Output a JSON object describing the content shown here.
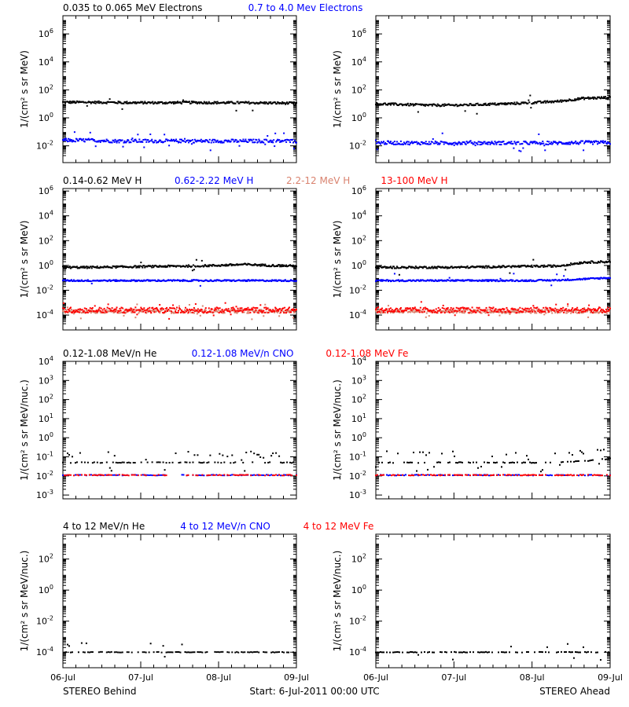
{
  "figure": {
    "bottom_left": "STEREO Behind",
    "bottom_center": "Start:  6-Jul-2011 00:00 UTC",
    "bottom_right": "STEREO Ahead",
    "x_ticks": [
      "06-Jul",
      "07-Jul",
      "08-Jul",
      "09-Jul"
    ],
    "colors": {
      "black": "#000000",
      "blue": "#0000ff",
      "salmon": "#d9826e",
      "red": "#ff0000",
      "axis": "#000000"
    }
  },
  "chart_data": [
    {
      "type": "scatter",
      "panel": "electrons-behind",
      "legend": [
        {
          "text": "0.035 to 0.065 MeV Electrons",
          "color": "#000000"
        },
        {
          "text": "0.7 to 4.0 Mev Electrons",
          "color": "#0000ff"
        }
      ],
      "ylabel": "1/(cm² s sr MeV)",
      "yscale": "log",
      "ylim_exp": [
        -3.2,
        7.3
      ],
      "ytick_exp": [
        -2,
        0,
        2,
        4,
        6
      ],
      "xlim_days": [
        0,
        3
      ],
      "series": [
        {
          "color": "#000000",
          "y": [
            13,
            13,
            12.5,
            12,
            12,
            12.5,
            12,
            12,
            11.5,
            11
          ],
          "scatter_exp": 0.08,
          "outliers": 0.01
        },
        {
          "color": "#0000ff",
          "y": [
            0.025,
            0.025,
            0.022,
            0.022,
            0.022,
            0.022,
            0.022,
            0.022,
            0.022,
            0.022
          ],
          "scatter_exp": 0.12,
          "outliers": 0.06
        }
      ]
    },
    {
      "type": "scatter",
      "panel": "electrons-ahead",
      "legend": [],
      "ylabel": "1/(cm² s sr MeV)",
      "yscale": "log",
      "ylim_exp": [
        -3.2,
        7.3
      ],
      "ytick_exp": [
        -2,
        0,
        2,
        4,
        6
      ],
      "xlim_days": [
        0,
        3
      ],
      "series": [
        {
          "color": "#000000",
          "y": [
            10,
            9,
            8,
            8,
            9,
            10,
            12,
            15,
            25,
            28
          ],
          "scatter_exp": 0.08,
          "outliers": 0.01
        },
        {
          "color": "#0000ff",
          "y": [
            0.017,
            0.016,
            0.016,
            0.016,
            0.016,
            0.016,
            0.016,
            0.016,
            0.017,
            0.017
          ],
          "scatter_exp": 0.12,
          "outliers": 0.05
        }
      ]
    },
    {
      "type": "scatter",
      "panel": "protons-behind",
      "legend": [
        {
          "text": "0.14-0.62 MeV H",
          "color": "#000000"
        },
        {
          "text": "0.62-2.22 MeV H",
          "color": "#0000ff"
        },
        {
          "text": "2.2-12 MeV H",
          "color": "#d9826e"
        },
        {
          "text": "13-100 MeV H",
          "color": "#ff0000"
        }
      ],
      "ylabel": "1/(cm² s sr MeV)",
      "yscale": "log",
      "ylim_exp": [
        -5.2,
        6.2
      ],
      "ytick_exp": [
        -4,
        -2,
        0,
        2,
        4,
        6
      ],
      "xlim_days": [
        0,
        3
      ],
      "series": [
        {
          "color": "#000000",
          "y": [
            0.7,
            0.7,
            0.75,
            0.8,
            0.85,
            0.9,
            1.0,
            1.2,
            1.0,
            0.9
          ],
          "scatter_exp": 0.08,
          "outliers": 0.01
        },
        {
          "color": "#0000ff",
          "y": [
            0.06,
            0.06,
            0.06,
            0.06,
            0.06,
            0.06,
            0.06,
            0.06,
            0.06,
            0.06
          ],
          "scatter_exp": 0.06,
          "outliers": 0.02
        },
        {
          "color": "#d9826e",
          "y": [
            0.0002,
            0.0002,
            0.0002,
            0.0002,
            0.0002,
            0.0002,
            0.0002,
            0.0002,
            0.0002,
            0.0002
          ],
          "scatter_exp": 0.15,
          "outliers": 0.05
        },
        {
          "color": "#ff0000",
          "y": [
            0.00025,
            0.00025,
            0.00025,
            0.00025,
            0.00025,
            0.00025,
            0.00025,
            0.00025,
            0.00025,
            0.00025
          ],
          "scatter_exp": 0.22,
          "outliers": 0.05
        }
      ]
    },
    {
      "type": "scatter",
      "panel": "protons-ahead",
      "legend": [],
      "ylabel": "1/(cm² s sr MeV)",
      "yscale": "log",
      "ylim_exp": [
        -5.2,
        6.2
      ],
      "ytick_exp": [
        -4,
        -2,
        0,
        2,
        4,
        6
      ],
      "xlim_days": [
        0,
        3
      ],
      "series": [
        {
          "color": "#000000",
          "y": [
            0.7,
            0.7,
            0.7,
            0.7,
            0.75,
            0.8,
            0.85,
            0.9,
            1.8,
            2.0
          ],
          "scatter_exp": 0.08,
          "outliers": 0.01
        },
        {
          "color": "#0000ff",
          "y": [
            0.06,
            0.06,
            0.06,
            0.06,
            0.06,
            0.06,
            0.06,
            0.065,
            0.08,
            0.1
          ],
          "scatter_exp": 0.06,
          "outliers": 0.02
        },
        {
          "color": "#d9826e",
          "y": [
            0.0002,
            0.0002,
            0.0002,
            0.0002,
            0.0002,
            0.0002,
            0.0002,
            0.0002,
            0.0002,
            0.0002
          ],
          "scatter_exp": 0.15,
          "outliers": 0.05
        },
        {
          "color": "#ff0000",
          "y": [
            0.00025,
            0.00025,
            0.00025,
            0.00025,
            0.00025,
            0.00025,
            0.00025,
            0.00025,
            0.00025,
            0.00025
          ],
          "scatter_exp": 0.22,
          "outliers": 0.05
        }
      ]
    },
    {
      "type": "scatter",
      "panel": "heavy-low-behind",
      "legend": [
        {
          "text": "0.12-1.08 MeV/n He",
          "color": "#000000"
        },
        {
          "text": "0.12-1.08 MeV/n CNO",
          "color": "#0000ff"
        },
        {
          "text": "0.12-1.08 MeV Fe",
          "color": "#ff0000"
        }
      ],
      "ylabel": "1/(cm² s sr MeV/nuc.)",
      "yscale": "log",
      "ylim_exp": [
        -3.2,
        4.0
      ],
      "ytick_exp": [
        -3,
        -2,
        -1,
        0,
        1,
        2,
        3,
        4
      ],
      "xlim_days": [
        0,
        3
      ],
      "series": [
        {
          "color": "#000000",
          "y": [
            0.05,
            0.05,
            0.05,
            0.05,
            0.05,
            0.05,
            0.05,
            0.05,
            0.05,
            0.05
          ],
          "scatter_exp": 0.0,
          "outliers": 0.15,
          "gaps": []
        },
        {
          "color": "#0000ff",
          "y": [
            0.011,
            0.011,
            0.011,
            0.011,
            0.011,
            0.011,
            0.011,
            0.011,
            0.011,
            0.011
          ],
          "scatter_exp": 0.0,
          "outliers": 0.0,
          "gaps": [
            [
              1.33,
              1.53
            ]
          ]
        },
        {
          "color": "#ff0000",
          "y": [
            0.011,
            0.011,
            0.011,
            0.011,
            0.011,
            0.011,
            0.011,
            0.011,
            0.011,
            0.011
          ],
          "scatter_exp": 0.0,
          "outliers": 0.0,
          "gaps": [
            [
              1.33,
              1.53
            ]
          ]
        }
      ]
    },
    {
      "type": "scatter",
      "panel": "heavy-low-ahead",
      "legend": [],
      "ylabel": "1/(cm² s sr MeV/nuc.)",
      "yscale": "log",
      "ylim_exp": [
        -3.2,
        4.0
      ],
      "ytick_exp": [
        -3,
        -2,
        -1,
        0,
        1,
        2,
        3,
        4
      ],
      "xlim_days": [
        0,
        3
      ],
      "series": [
        {
          "color": "#000000",
          "y": [
            0.05,
            0.05,
            0.05,
            0.05,
            0.05,
            0.05,
            0.05,
            0.05,
            0.06,
            0.08
          ],
          "scatter_exp": 0.0,
          "outliers": 0.15,
          "gaps": []
        },
        {
          "color": "#0000ff",
          "y": [
            0.011,
            0.011,
            0.011,
            0.011,
            0.011,
            0.011,
            0.011,
            0.011,
            0.011,
            0.011
          ],
          "scatter_exp": 0.0,
          "outliers": 0.0,
          "gaps": []
        },
        {
          "color": "#ff0000",
          "y": [
            0.011,
            0.011,
            0.011,
            0.011,
            0.011,
            0.011,
            0.011,
            0.011,
            0.011,
            0.011
          ],
          "scatter_exp": 0.0,
          "outliers": 0.0,
          "gaps": []
        }
      ]
    },
    {
      "type": "scatter",
      "panel": "heavy-high-behind",
      "legend": [
        {
          "text": "4 to 12 MeV/n He",
          "color": "#000000"
        },
        {
          "text": "4 to 12 MeV/n CNO",
          "color": "#0000ff"
        },
        {
          "text": "4 to 12 MeV Fe",
          "color": "#ff0000"
        }
      ],
      "ylabel": "1/(cm² s sr MeV/nuc.)",
      "yscale": "log",
      "ylim_exp": [
        -5.0,
        3.6
      ],
      "ytick_exp": [
        -4,
        -2,
        0,
        2
      ],
      "xlim_days": [
        0,
        3
      ],
      "series": [
        {
          "color": "#000000",
          "y": [
            0.0001,
            0.0001,
            0.0001,
            0.0001,
            0.0001,
            0.0001,
            0.0001,
            0.0001,
            0.0001,
            0.0001
          ],
          "scatter_exp": 0.0,
          "outliers": 0.04,
          "gaps": []
        }
      ]
    },
    {
      "type": "scatter",
      "panel": "heavy-high-ahead",
      "legend": [],
      "ylabel": "1/(cm² s sr MeV/nuc.)",
      "yscale": "log",
      "ylim_exp": [
        -5.0,
        3.6
      ],
      "ytick_exp": [
        -4,
        -2,
        0,
        2
      ],
      "xlim_days": [
        0,
        3
      ],
      "series": [
        {
          "color": "#000000",
          "y": [
            0.0001,
            0.0001,
            0.0001,
            0.0001,
            0.0001,
            0.0001,
            0.0001,
            0.0001,
            0.0001,
            0.0001
          ],
          "scatter_exp": 0.0,
          "outliers": 0.04,
          "gaps": []
        }
      ]
    }
  ]
}
